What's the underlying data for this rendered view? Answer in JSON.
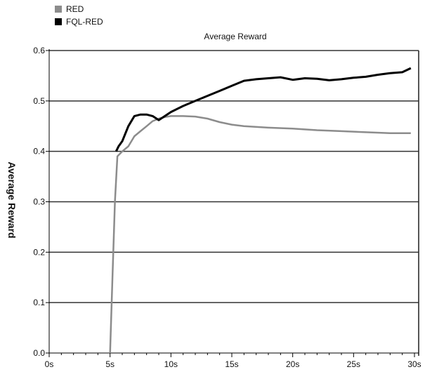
{
  "chart_data": {
    "type": "line",
    "title": "Average Reward",
    "ylabel": "Average Reward",
    "xlabel": "",
    "xlim": [
      0,
      30
    ],
    "ylim": [
      0,
      0.6
    ],
    "x_ticks": [
      "0s",
      "5s",
      "10s",
      "15s",
      "20s",
      "25s",
      "30s"
    ],
    "y_ticks": [
      "0.0",
      "0.1",
      "0.2",
      "0.3",
      "0.4",
      "0.5",
      "0.6"
    ],
    "grid": "horizontal",
    "legend_position": "top-left",
    "series": [
      {
        "name": "RED",
        "color": "#8c8c8c",
        "x": [
          5.0,
          5.2,
          5.4,
          5.6,
          6.0,
          6.5,
          7.0,
          7.5,
          8.0,
          8.5,
          9.0,
          9.5,
          10.0,
          11.0,
          12.0,
          13.0,
          14.0,
          15.0,
          16.0,
          18.0,
          20.0,
          22.0,
          24.0,
          26.0,
          28.0,
          29.7
        ],
        "y": [
          0.0,
          0.15,
          0.3,
          0.39,
          0.4,
          0.41,
          0.43,
          0.44,
          0.45,
          0.46,
          0.465,
          0.468,
          0.47,
          0.47,
          0.469,
          0.465,
          0.458,
          0.453,
          0.45,
          0.447,
          0.445,
          0.442,
          0.44,
          0.438,
          0.436,
          0.436
        ]
      },
      {
        "name": "FQL-RED",
        "color": "#000000",
        "x": [
          5.5,
          5.7,
          6.0,
          6.5,
          7.0,
          7.5,
          8.0,
          8.5,
          9.0,
          9.5,
          10.0,
          11.0,
          12.0,
          13.0,
          14.0,
          15.0,
          16.0,
          17.0,
          18.0,
          19.0,
          20.0,
          21.0,
          22.0,
          23.0,
          24.0,
          25.0,
          26.0,
          27.0,
          28.0,
          29.0,
          29.7
        ],
        "y": [
          0.4,
          0.41,
          0.42,
          0.45,
          0.47,
          0.473,
          0.473,
          0.47,
          0.462,
          0.47,
          0.478,
          0.49,
          0.5,
          0.51,
          0.52,
          0.53,
          0.54,
          0.543,
          0.545,
          0.547,
          0.542,
          0.545,
          0.544,
          0.541,
          0.543,
          0.546,
          0.548,
          0.552,
          0.555,
          0.557,
          0.565
        ]
      }
    ]
  }
}
